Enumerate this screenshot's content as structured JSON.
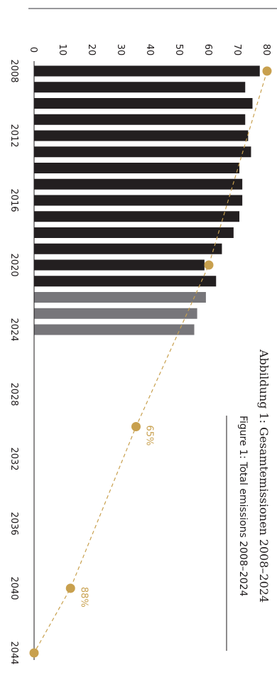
{
  "colors": {
    "historic": "#231f20",
    "recent": "#77767a",
    "target": "#c8a04e",
    "axis": "#1e1a1b"
  },
  "caption": {
    "de": "Abbildung 1: Gesamtemissionen 2008–2024",
    "en": "Figure 1: Total emissions 2008–2024"
  },
  "chart_data": {
    "type": "bar",
    "orientation": "rotated-90-clockwise",
    "categories": [
      2008,
      2009,
      2010,
      2011,
      2012,
      2013,
      2014,
      2015,
      2016,
      2017,
      2018,
      2019,
      2020,
      2021,
      2022,
      2023,
      2024
    ],
    "values": [
      77.5,
      72.5,
      75,
      72.5,
      73.5,
      74.5,
      70.5,
      71.5,
      71.5,
      70.5,
      68.5,
      64.5,
      58.5,
      62.5,
      59,
      56,
      55
    ],
    "recent_from": 2022,
    "x_tick_labels": [
      "2008",
      "2012",
      "2016",
      "2020",
      "2024",
      "2028",
      "2032",
      "2036",
      "2040",
      "2044"
    ],
    "y_ticks": [
      0,
      10,
      20,
      30,
      40,
      50,
      60,
      70,
      80
    ],
    "ylim": [
      0,
      80
    ],
    "xlim": [
      2008,
      2044
    ],
    "target_path": {
      "points": [
        {
          "year": 2008,
          "value": 80,
          "label": ""
        },
        {
          "year": 2020,
          "value": 60,
          "label": ""
        },
        {
          "year": 2030,
          "value": 35,
          "label": "65%"
        },
        {
          "year": 2040,
          "value": 12.5,
          "label": "88%"
        },
        {
          "year": 2044,
          "value": 0,
          "label": ""
        }
      ]
    }
  }
}
